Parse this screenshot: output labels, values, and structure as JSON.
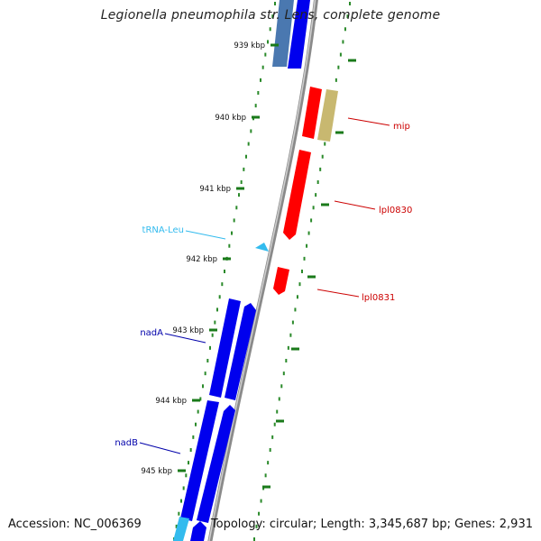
{
  "title": "Legionella pneumophila str. Lens, complete genome",
  "footer": {
    "accession": "Accession: NC_006369",
    "summary": "Topology: circular; Length: 3,345,687 bp; Genes: 2,931"
  },
  "colors": {
    "backbone": "#8a8a8a",
    "tick": "#1a7a1a",
    "dot": "#2a8a2a",
    "forward_gene": "#ff0000",
    "reverse_gene": "#0000ee",
    "rna": "#33bbee",
    "other": "#c8b870",
    "steel": "#4a78b0"
  },
  "ticks": [
    {
      "label": "939 kbp"
    },
    {
      "label": "940 kbp"
    },
    {
      "label": "941 kbp"
    },
    {
      "label": "942 kbp"
    },
    {
      "label": "943 kbp"
    },
    {
      "label": "944 kbp"
    },
    {
      "label": "945 kbp"
    }
  ],
  "feature_labels": [
    {
      "text": "mip",
      "color": "#cc0000"
    },
    {
      "text": "lpl0830",
      "color": "#cc0000"
    },
    {
      "text": "lpl0831",
      "color": "#cc0000"
    },
    {
      "text": "tRNA-Leu",
      "color": "#33bbee"
    },
    {
      "text": "nadA",
      "color": "#0000aa"
    },
    {
      "text": "nadB",
      "color": "#0000aa"
    }
  ]
}
